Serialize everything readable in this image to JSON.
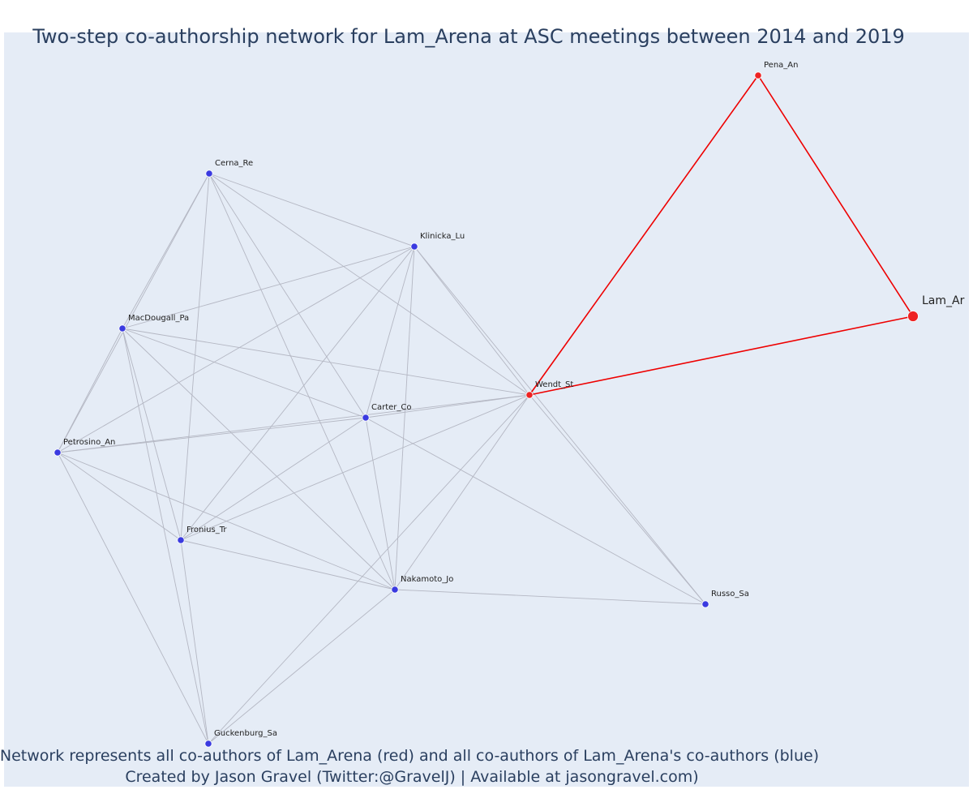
{
  "title": "Two-step co-authorship network for Lam_Arena at ASC meetings between 2014 and 2019",
  "footnote": {
    "line1": "Network represents all co-authors of Lam_Arena (red) and all co-authors of Lam_Arena's co-authors (blue)",
    "line2": "Created by Jason Gravel (Twitter:@GravelJ) | Available at jasongravel.com)"
  },
  "colors": {
    "background": "#e5ecf6",
    "ego_edge": "#ee0000",
    "other_edge": "#b4b7c3",
    "red_node": "#ee2222",
    "blue_node": "#3a3ae0",
    "text": "#2a3f5f"
  },
  "nodes": [
    {
      "id": "Lam_Ar",
      "group": "ego"
    },
    {
      "id": "Pena_An",
      "group": "red"
    },
    {
      "id": "Wendt_St",
      "group": "red"
    },
    {
      "id": "Cerna_Re",
      "group": "blue"
    },
    {
      "id": "Klinicka_Lu",
      "group": "blue"
    },
    {
      "id": "MacDougall_Pa",
      "group": "blue"
    },
    {
      "id": "Carter_Co",
      "group": "blue"
    },
    {
      "id": "Petrosino_An",
      "group": "blue"
    },
    {
      "id": "Fronius_Tr",
      "group": "blue"
    },
    {
      "id": "Nakamoto_Jo",
      "group": "blue"
    },
    {
      "id": "Russo_Sa",
      "group": "blue"
    },
    {
      "id": "Guckenburg_Sa",
      "group": "blue"
    }
  ],
  "edges": [
    [
      "Lam_Ar",
      "Pena_An",
      "ego"
    ],
    [
      "Lam_Ar",
      "Wendt_St",
      "ego"
    ],
    [
      "Pena_An",
      "Wendt_St",
      "ego"
    ],
    [
      "Cerna_Re",
      "MacDougall_Pa"
    ],
    [
      "Cerna_Re",
      "Petrosino_An"
    ],
    [
      "Cerna_Re",
      "Klinicka_Lu"
    ],
    [
      "Cerna_Re",
      "Wendt_St"
    ],
    [
      "Cerna_Re",
      "Carter_Co"
    ],
    [
      "Cerna_Re",
      "Nakamoto_Jo"
    ],
    [
      "Cerna_Re",
      "Fronius_Tr"
    ],
    [
      "Klinicka_Lu",
      "MacDougall_Pa"
    ],
    [
      "Klinicka_Lu",
      "Petrosino_An"
    ],
    [
      "Klinicka_Lu",
      "Carter_Co"
    ],
    [
      "Klinicka_Lu",
      "Fronius_Tr"
    ],
    [
      "Klinicka_Lu",
      "Nakamoto_Jo"
    ],
    [
      "Klinicka_Lu",
      "Wendt_St"
    ],
    [
      "Klinicka_Lu",
      "Russo_Sa"
    ],
    [
      "MacDougall_Pa",
      "Petrosino_An"
    ],
    [
      "MacDougall_Pa",
      "Carter_Co"
    ],
    [
      "MacDougall_Pa",
      "Wendt_St"
    ],
    [
      "MacDougall_Pa",
      "Fronius_Tr"
    ],
    [
      "MacDougall_Pa",
      "Nakamoto_Jo"
    ],
    [
      "MacDougall_Pa",
      "Guckenburg_Sa"
    ],
    [
      "Carter_Co",
      "Petrosino_An"
    ],
    [
      "Carter_Co",
      "Wendt_St"
    ],
    [
      "Carter_Co",
      "Fronius_Tr"
    ],
    [
      "Carter_Co",
      "Nakamoto_Jo"
    ],
    [
      "Carter_Co",
      "Russo_Sa"
    ],
    [
      "Petrosino_An",
      "Wendt_St"
    ],
    [
      "Petrosino_An",
      "Fronius_Tr"
    ],
    [
      "Petrosino_An",
      "Nakamoto_Jo"
    ],
    [
      "Petrosino_An",
      "Guckenburg_Sa"
    ],
    [
      "Fronius_Tr",
      "Wendt_St"
    ],
    [
      "Fronius_Tr",
      "Nakamoto_Jo"
    ],
    [
      "Fronius_Tr",
      "Guckenburg_Sa"
    ],
    [
      "Nakamoto_Jo",
      "Wendt_St"
    ],
    [
      "Nakamoto_Jo",
      "Russo_Sa"
    ],
    [
      "Nakamoto_Jo",
      "Guckenburg_Sa"
    ],
    [
      "Wendt_St",
      "Russo_Sa"
    ],
    [
      "Wendt_St",
      "Guckenburg_Sa"
    ]
  ]
}
